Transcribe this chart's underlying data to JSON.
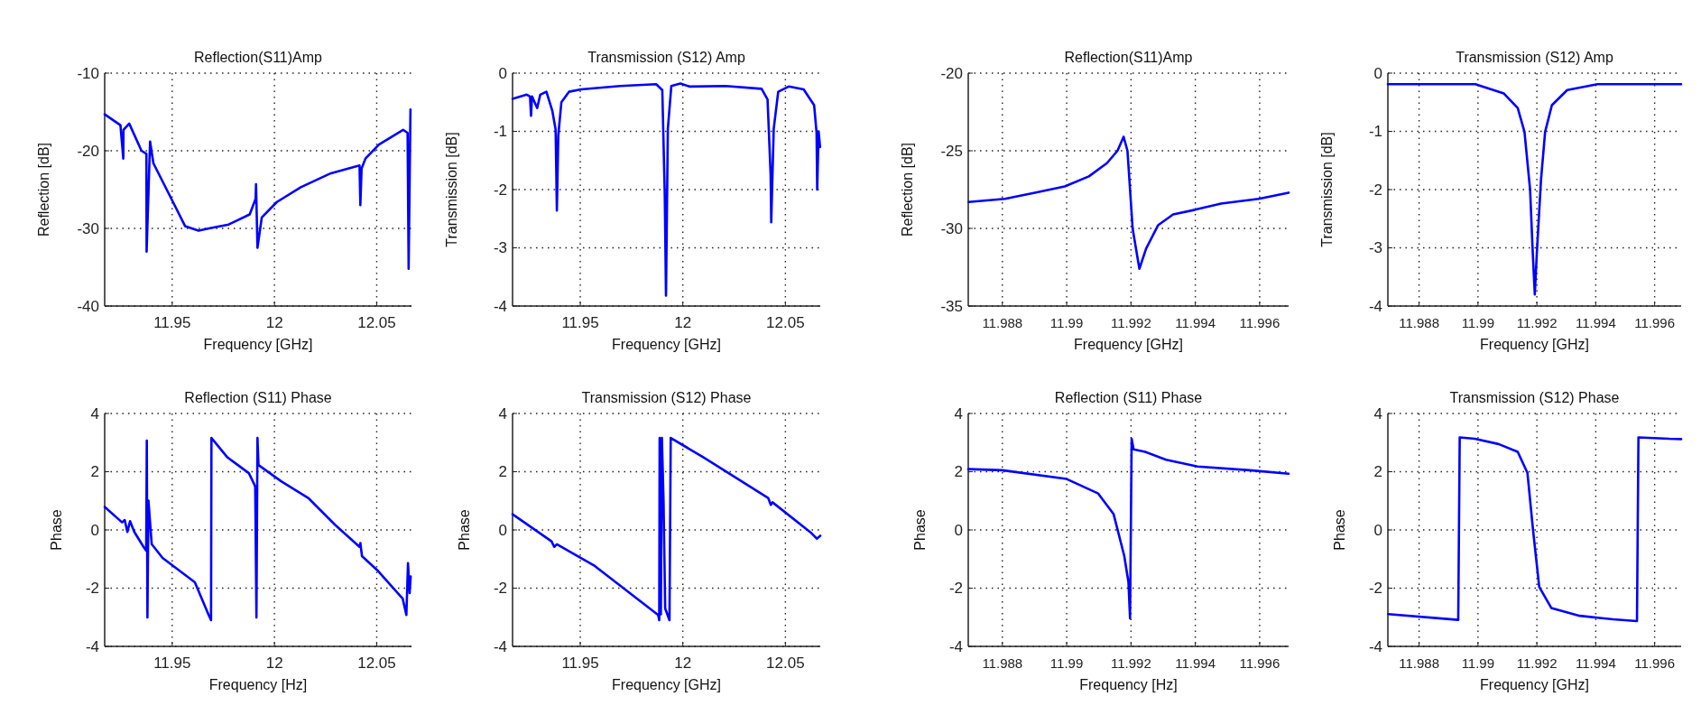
{
  "chart_data": [
    {
      "type": "line",
      "title": "Reflection(S11)Amp",
      "xlabel": "Frequency [GHz]",
      "ylabel": "Reflection [dB]",
      "color": "#0000ff",
      "grid": true,
      "xlim": [
        11.917,
        12.067
      ],
      "ylim": [
        -40,
        -10
      ],
      "xticks": [
        11.95,
        12,
        12.05
      ],
      "yticks": [
        -40,
        -30,
        -20,
        -10
      ],
      "x": [
        11.917,
        11.9247,
        11.9261,
        11.9262,
        11.929,
        11.935,
        11.9374,
        11.9375,
        11.9392,
        11.9408,
        11.9504,
        11.9563,
        11.9629,
        11.968,
        11.9776,
        11.9879,
        11.9908,
        11.991,
        11.9917,
        11.9938,
        12.0012,
        12.0129,
        12.0276,
        12.0416,
        12.042,
        12.0426,
        12.0445,
        12.0511,
        12.0629,
        12.0651,
        12.0656,
        12.0665
      ],
      "values": [
        -15.3,
        -16.7,
        -21,
        -17.3,
        -16.5,
        -20,
        -20.4,
        -33,
        -18.8,
        -21.6,
        -26.6,
        -29.7,
        -30.3,
        -30,
        -29.5,
        -28.2,
        -26.2,
        -24.3,
        -32.5,
        -28.6,
        -26.6,
        -24.7,
        -22.9,
        -21.9,
        -27,
        -22.3,
        -21,
        -19.2,
        -17.3,
        -17.7,
        -35.2,
        -14.7
      ]
    },
    {
      "type": "line",
      "title": "Transmission (S12) Amp",
      "xlabel": "Frequency [GHz]",
      "ylabel": "Transmission [dB]",
      "color": "#0000ff",
      "grid": true,
      "xlim": [
        11.917,
        12.067
      ],
      "ylim": [
        -4,
        0
      ],
      "xticks": [
        11.95,
        12,
        12.05
      ],
      "yticks": [
        -4,
        -3,
        -2,
        -1,
        0
      ],
      "x": [
        11.917,
        11.9239,
        11.9255,
        11.926,
        11.9265,
        11.929,
        11.9305,
        11.9335,
        11.9364,
        11.938,
        11.9386,
        11.9393,
        11.9408,
        11.9445,
        11.9504,
        11.9695,
        11.987,
        11.99,
        11.9912,
        11.9918,
        11.9927,
        11.9944,
        11.9988,
        12.0032,
        12.0208,
        12.0384,
        12.0413,
        12.0428,
        12.0431,
        12.0443,
        12.0465,
        12.0516,
        12.0589,
        12.064,
        12.0652,
        12.0655,
        12.0662,
        12.0669
      ],
      "values": [
        -0.44,
        -0.37,
        -0.4,
        -0.73,
        -0.4,
        -0.6,
        -0.37,
        -0.32,
        -0.65,
        -0.97,
        -2.36,
        -1.07,
        -0.5,
        -0.32,
        -0.28,
        -0.22,
        -0.19,
        -0.29,
        -2.1,
        -3.82,
        -0.96,
        -0.22,
        -0.18,
        -0.23,
        -0.22,
        -0.27,
        -0.45,
        -1.74,
        -2.56,
        -0.96,
        -0.32,
        -0.23,
        -0.28,
        -0.55,
        -1.02,
        -2,
        -1,
        -1.27
      ]
    },
    {
      "type": "line",
      "title": "Reflection(S11)Amp",
      "xlabel": "Frequency [GHz]",
      "ylabel": "Reflection [dB]",
      "color": "#0000ff",
      "grid": true,
      "xlim": [
        11.98694,
        11.9969
      ],
      "ylim": [
        -35,
        -20
      ],
      "xticks": [
        11.988,
        11.99,
        11.992,
        11.994,
        11.996
      ],
      "yticks": [
        -35,
        -30,
        -25,
        -20
      ],
      "x": [
        11.98695,
        11.98808,
        11.98901,
        11.98994,
        11.99069,
        11.99125,
        11.99158,
        11.99177,
        11.99189,
        11.99205,
        11.99226,
        11.99247,
        11.99284,
        11.99331,
        11.99399,
        11.9948,
        11.99597,
        11.9969
      ],
      "values": [
        -28.3,
        -28.1,
        -27.7,
        -27.3,
        -26.65,
        -25.8,
        -25,
        -24.1,
        -25,
        -30,
        -32.6,
        -31.3,
        -29.8,
        -29.1,
        -28.8,
        -28.4,
        -28.1,
        -27.7
      ]
    },
    {
      "type": "line",
      "title": "Transmission (S12) Amp",
      "xlabel": "Frequency [GHz]",
      "ylabel": "Transmission [dB]",
      "color": "#0000ff",
      "grid": true,
      "xlim": [
        11.98694,
        11.9969
      ],
      "ylim": [
        -4,
        0
      ],
      "xticks": [
        11.988,
        11.99,
        11.992,
        11.994,
        11.996
      ],
      "yticks": [
        -4,
        -3,
        -2,
        -1,
        0
      ],
      "x": [
        11.98694,
        11.98991,
        11.99088,
        11.99135,
        11.99158,
        11.99177,
        11.99186,
        11.99193,
        11.992,
        11.99214,
        11.99228,
        11.99251,
        11.99303,
        11.99406,
        11.9969
      ],
      "values": [
        -0.19,
        -0.19,
        -0.35,
        -0.6,
        -1.01,
        -2,
        -3.08,
        -3.8,
        -3.08,
        -1.84,
        -1.01,
        -0.55,
        -0.29,
        -0.19,
        -0.19
      ]
    },
    {
      "type": "line",
      "title": "Reflection (S11) Phase",
      "xlabel": "Frequency [Hz]",
      "ylabel": "Phase",
      "color": "#0000ff",
      "grid": true,
      "xlim": [
        11.917,
        12.067
      ],
      "ylim": [
        -4,
        4
      ],
      "xticks": [
        11.95,
        12,
        12.05
      ],
      "yticks": [
        -4,
        -2,
        0,
        2,
        4
      ],
      "x": [
        11.917,
        11.9255,
        11.9268,
        11.9281,
        11.9294,
        11.9315,
        11.936,
        11.9373,
        11.9376,
        11.9379,
        11.9384,
        11.94,
        11.9453,
        11.9611,
        11.9677,
        11.969,
        11.9692,
        11.9769,
        11.9875,
        11.9901,
        11.9906,
        11.9912,
        11.9917,
        11.9922,
        12.0033,
        12.0165,
        12.0297,
        12.0416,
        12.042,
        12.0428,
        12.0508,
        12.0627,
        12.0645,
        12.0653,
        12.0661,
        12.0666
      ],
      "values": [
        0.79,
        0.26,
        0.34,
        -0.07,
        0.3,
        -0.07,
        -0.58,
        -0.71,
        3.07,
        -3.01,
        1.01,
        -0.49,
        -0.96,
        -1.8,
        -2.9,
        -3.1,
        3.16,
        2.5,
        1.95,
        1.57,
        1.48,
        -3.01,
        3.16,
        2.23,
        1.67,
        1.1,
        0.17,
        -0.58,
        -0.45,
        -0.9,
        -1.42,
        -2.36,
        -2.92,
        -1.14,
        -2.17,
        -1.6
      ]
    },
    {
      "type": "line",
      "title": "Transmission (S12) Phase",
      "xlabel": "Frequency [GHz]",
      "ylabel": "Phase",
      "color": "#0000ff",
      "grid": true,
      "xlim": [
        11.917,
        12.067
      ],
      "ylim": [
        -4,
        4
      ],
      "xticks": [
        11.95,
        12,
        12.05
      ],
      "yticks": [
        -4,
        -2,
        0,
        2,
        4
      ],
      "x": [
        11.917,
        11.936,
        11.9373,
        11.9386,
        11.9571,
        11.988,
        11.9885,
        11.9887,
        11.9893,
        11.9898,
        11.9906,
        11.9914,
        11.9935,
        11.9941,
        12.0099,
        12.0416,
        12.0429,
        12.0437,
        12.0627,
        12.0653,
        12.067
      ],
      "values": [
        0.54,
        -0.39,
        -0.58,
        -0.49,
        -1.24,
        -2.92,
        -3.1,
        3.16,
        -2.9,
        3.16,
        1.01,
        -2.7,
        -3.1,
        3.16,
        2.5,
        1.1,
        0.86,
        0.95,
        -0.11,
        -0.3,
        -0.2
      ]
    },
    {
      "type": "line",
      "title": "Reflection (S11) Phase",
      "xlabel": "Frequency [Hz]",
      "ylabel": "Phase",
      "color": "#0000ff",
      "grid": true,
      "xlim": [
        11.98694,
        11.9969
      ],
      "ylim": [
        -4,
        4
      ],
      "xticks": [
        11.988,
        11.99,
        11.992,
        11.994,
        11.996
      ],
      "yticks": [
        -4,
        -2,
        0,
        2,
        4
      ],
      "x": [
        11.98694,
        11.988,
        11.99,
        11.99098,
        11.99146,
        11.99179,
        11.99192,
        11.99197,
        11.99202,
        11.99208,
        11.99244,
        11.99309,
        11.99407,
        11.99569,
        11.9969
      ],
      "values": [
        2.09,
        2.05,
        1.75,
        1.25,
        0.54,
        -0.89,
        -1.79,
        -3.04,
        3.13,
        2.77,
        2.68,
        2.41,
        2.18,
        2.05,
        1.93
      ]
    },
    {
      "type": "line",
      "title": "Transmission (S12) Phase",
      "xlabel": "Frequency [GHz]",
      "ylabel": "Phase",
      "color": "#0000ff",
      "grid": true,
      "xlim": [
        11.98694,
        11.9969
      ],
      "ylim": [
        -4,
        4
      ],
      "xticks": [
        11.988,
        11.99,
        11.992,
        11.994,
        11.996
      ],
      "yticks": [
        -4,
        -2,
        0,
        2,
        4
      ],
      "x": [
        11.98695,
        11.98933,
        11.98938,
        11.98989,
        11.9907,
        11.99135,
        11.99168,
        11.99187,
        11.99208,
        11.99249,
        11.99346,
        11.99459,
        11.9954,
        11.99545,
        11.9965,
        11.9969
      ],
      "values": [
        -2.89,
        -3.09,
        3.18,
        3.13,
        2.95,
        2.68,
        1.96,
        0,
        -1.96,
        -2.68,
        -2.95,
        -3.07,
        -3.13,
        3.18,
        3.13,
        3.12
      ]
    }
  ]
}
